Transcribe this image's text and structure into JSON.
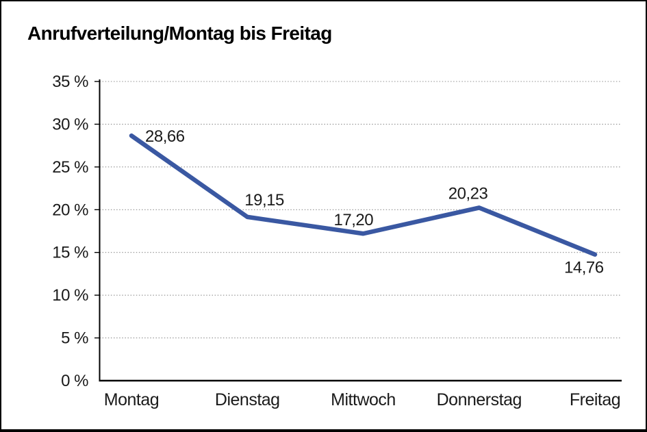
{
  "chart_data": {
    "type": "line",
    "title": "Anrufverteilung/Montag bis Freitag",
    "categories": [
      "Montag",
      "Dienstag",
      "Mittwoch",
      "Donnerstag",
      "Freitag"
    ],
    "values": [
      28.66,
      19.15,
      17.2,
      20.23,
      14.76
    ],
    "point_labels": [
      "28,66",
      "19,15",
      "17,20",
      "20,23",
      "14,76"
    ],
    "series_name": "Anrufverteilung",
    "y_tick_values": [
      0,
      5,
      10,
      15,
      20,
      25,
      30,
      35
    ],
    "y_tick_labels": [
      "0 %",
      "5 %",
      "10 %",
      "15 %",
      "20 %",
      "25 %",
      "30 %",
      "35 %"
    ],
    "ylim": [
      0,
      35
    ],
    "xlabel": "",
    "ylabel": "",
    "legend": "none",
    "grid": "horizontal-dotted",
    "decimal_separator": ",",
    "colors": {
      "line": "#3A58A2",
      "grid": "#8f8f8f",
      "axis": "#000000",
      "text": "#1a1a1a",
      "title": "#000000",
      "background": "#ffffff",
      "frame_border": "#000000"
    }
  }
}
